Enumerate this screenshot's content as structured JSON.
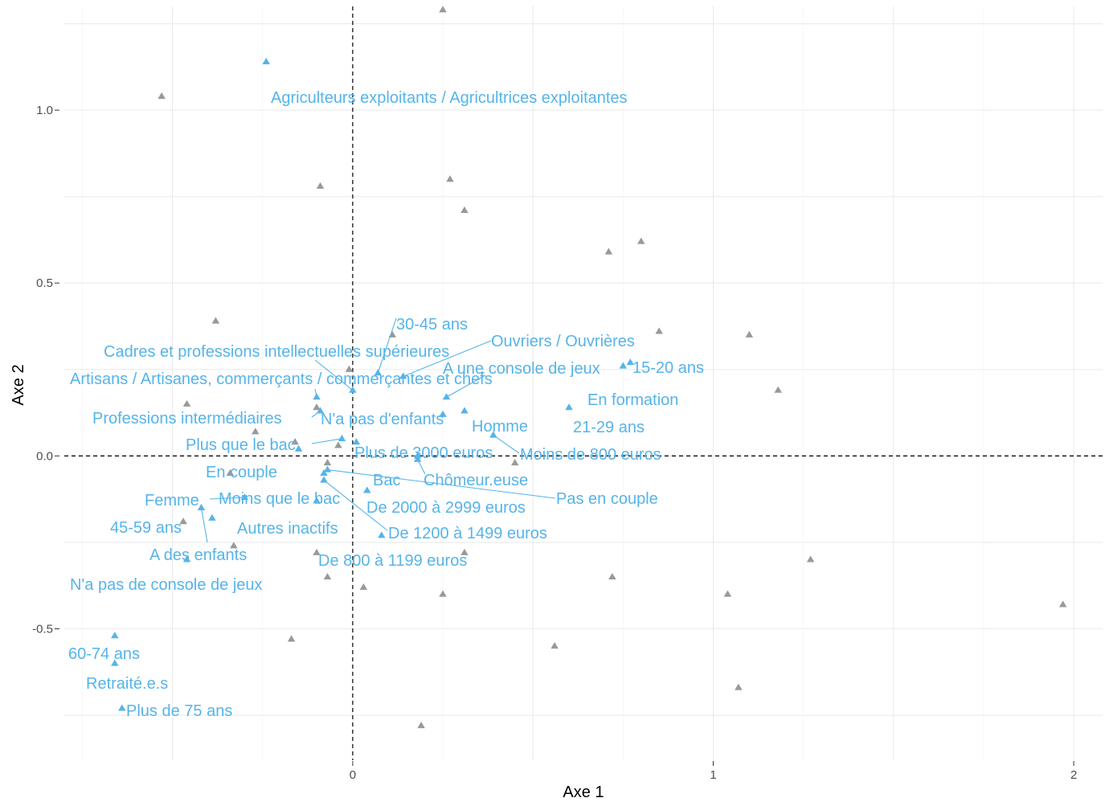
{
  "chart_data": {
    "type": "scatter",
    "title": "",
    "xlabel": "Axe 1",
    "ylabel": "Axe 2",
    "xlim": [
      -0.8,
      2.08
    ],
    "ylim": [
      -0.88,
      1.3
    ],
    "x_ticks": [
      {
        "value": 0,
        "label": "0"
      },
      {
        "value": 1,
        "label": "1"
      },
      {
        "value": 2,
        "label": "2"
      }
    ],
    "y_ticks": [
      {
        "value": 1.0,
        "label": "1.0"
      },
      {
        "value": 0.5,
        "label": "0.5"
      },
      {
        "value": 0.0,
        "label": "0.0"
      },
      {
        "value": -0.5,
        "label": "-0.5"
      }
    ],
    "grid": true,
    "reference_lines": {
      "x": 0,
      "y": 0,
      "style": "dashed"
    },
    "colors": {
      "individuals": "#999999",
      "categories": "#56b4e9",
      "reference": "#000000"
    },
    "series": [
      {
        "role": "individuals",
        "marker": "triangle",
        "points": [
          {
            "x": 0.25,
            "y": 1.29
          },
          {
            "x": -0.53,
            "y": 1.04
          },
          {
            "x": -0.09,
            "y": 0.78
          },
          {
            "x": 0.27,
            "y": 0.8
          },
          {
            "x": 0.31,
            "y": 0.71
          },
          {
            "x": 0.71,
            "y": 0.59
          },
          {
            "x": 0.8,
            "y": 0.62
          },
          {
            "x": 0.85,
            "y": 0.36
          },
          {
            "x": 1.1,
            "y": 0.35
          },
          {
            "x": 1.18,
            "y": 0.19
          },
          {
            "x": -0.38,
            "y": 0.39
          },
          {
            "x": 0.11,
            "y": 0.35
          },
          {
            "x": -0.01,
            "y": 0.25
          },
          {
            "x": -0.46,
            "y": 0.15
          },
          {
            "x": -0.27,
            "y": 0.07
          },
          {
            "x": -0.16,
            "y": 0.04
          },
          {
            "x": -0.04,
            "y": 0.03
          },
          {
            "x": -0.34,
            "y": -0.05
          },
          {
            "x": -0.47,
            "y": -0.19
          },
          {
            "x": 0.45,
            "y": -0.02
          },
          {
            "x": -0.33,
            "y": -0.26
          },
          {
            "x": -0.1,
            "y": -0.28
          },
          {
            "x": 0.31,
            "y": -0.28
          },
          {
            "x": -0.07,
            "y": -0.35
          },
          {
            "x": 0.03,
            "y": -0.38
          },
          {
            "x": 0.25,
            "y": -0.4
          },
          {
            "x": 0.72,
            "y": -0.35
          },
          {
            "x": 1.04,
            "y": -0.4
          },
          {
            "x": 1.27,
            "y": -0.3
          },
          {
            "x": 1.97,
            "y": -0.43
          },
          {
            "x": 0.56,
            "y": -0.55
          },
          {
            "x": -0.17,
            "y": -0.53
          },
          {
            "x": 1.07,
            "y": -0.67
          },
          {
            "x": 0.19,
            "y": -0.78
          },
          {
            "x": -0.07,
            "y": -0.02
          },
          {
            "x": -0.1,
            "y": 0.14
          }
        ]
      },
      {
        "role": "categories",
        "marker": "triangle",
        "points": [
          {
            "label": "Agriculteurs exploitants / Agricultrices exploitantes",
            "x": -0.24,
            "y": 1.14
          },
          {
            "label": "30-45 ans",
            "x": 0.07,
            "y": 0.24
          },
          {
            "label": "Cadres et professions intellectuelles supérieures",
            "x": 0.0,
            "y": 0.19
          },
          {
            "label": "Ouvriers / Ouvrières",
            "x": 0.14,
            "y": 0.23
          },
          {
            "label": "Artisans / Artisanes, commerçants / commerçantes et chefs",
            "x": -0.1,
            "y": 0.17
          },
          {
            "label": "A une console de jeux",
            "x": 0.26,
            "y": 0.17
          },
          {
            "label": "15-20 ans",
            "x": 0.77,
            "y": 0.27
          },
          {
            "label": "En formation",
            "x": 0.75,
            "y": 0.26
          },
          {
            "label": "Professions intermédiaires",
            "x": -0.09,
            "y": 0.13
          },
          {
            "label": "N'a pas d'enfants",
            "x": 0.25,
            "y": 0.12
          },
          {
            "label": "Homme",
            "x": 0.31,
            "y": 0.13
          },
          {
            "label": "21-29 ans",
            "x": 0.6,
            "y": 0.14
          },
          {
            "label": "Plus que le bac",
            "x": -0.03,
            "y": 0.05
          },
          {
            "label": "Plus de 3000 euros",
            "x": 0.01,
            "y": 0.04
          },
          {
            "label": "Moins de 800 euros",
            "x": 0.39,
            "y": 0.06
          },
          {
            "label": "En couple",
            "x": -0.15,
            "y": 0.02
          },
          {
            "label": "Bac",
            "x": 0.18,
            "y": 0.0
          },
          {
            "label": "Chômeur.euse",
            "x": 0.18,
            "y": -0.01
          },
          {
            "label": "Pas en couple",
            "x": -0.07,
            "y": -0.04
          },
          {
            "label": "Femme",
            "x": -0.3,
            "y": -0.12
          },
          {
            "label": "Moins que le bac",
            "x": -0.08,
            "y": -0.05
          },
          {
            "label": "De 2000 à 2999 euros",
            "x": 0.04,
            "y": -0.1
          },
          {
            "label": "45-59 ans",
            "x": -0.42,
            "y": -0.15
          },
          {
            "label": "Autres inactifs",
            "x": -0.1,
            "y": -0.13
          },
          {
            "label": "De 1200 à 1499 euros",
            "x": -0.08,
            "y": -0.07
          },
          {
            "label": "A des enfants",
            "x": -0.39,
            "y": -0.18
          },
          {
            "label": "De 800 à 1199 euros",
            "x": 0.08,
            "y": -0.23
          },
          {
            "label": "N'a pas de console de jeux",
            "x": -0.46,
            "y": -0.3
          },
          {
            "label": "60-74 ans",
            "x": -0.66,
            "y": -0.52
          },
          {
            "label": "Retraité.e.s",
            "x": -0.66,
            "y": -0.6
          },
          {
            "label": "Plus de 75 ans",
            "x": -0.64,
            "y": -0.73
          }
        ]
      }
    ]
  }
}
